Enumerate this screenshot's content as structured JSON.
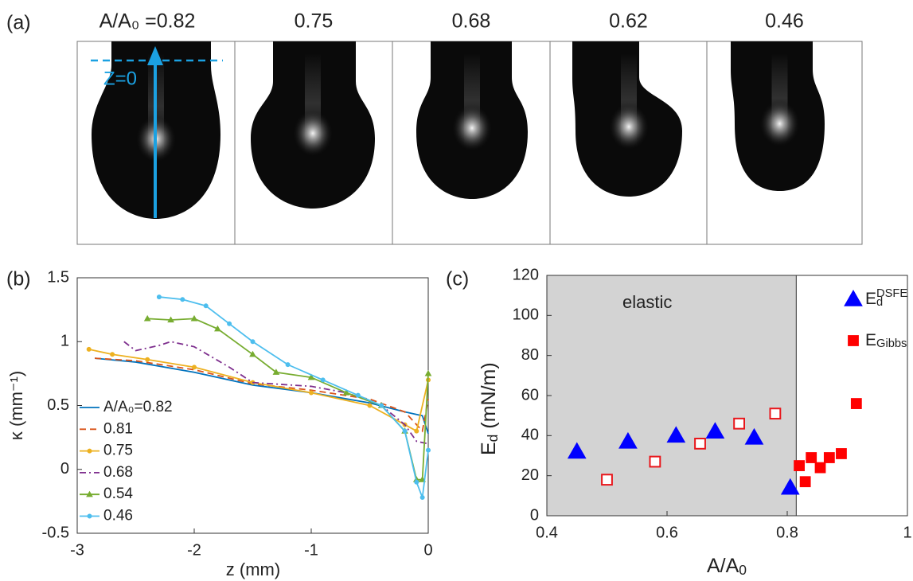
{
  "panel_a": {
    "label": "(a)",
    "z_label": "Z=0",
    "frames": [
      {
        "label": "A/A₀ =0.82"
      },
      {
        "label": "0.75"
      },
      {
        "label": "0.68"
      },
      {
        "label": "0.62"
      },
      {
        "label": "0.46"
      }
    ]
  },
  "chart_data": [
    {
      "type": "line",
      "panel_label": "(b)",
      "xlabel": "z (mm)",
      "ylabel": "κ (mm⁻¹)",
      "xlim": [
        -3,
        0
      ],
      "ylim": [
        -0.5,
        1.5
      ],
      "xticks": [
        -3,
        -2,
        -1,
        0
      ],
      "yticks": [
        -0.5,
        0,
        0.5,
        1,
        1.5
      ],
      "legend": "lower left",
      "series": [
        {
          "name": "A/A₀=0.82",
          "color": "#0072bd",
          "dash": "solid",
          "marker": "none",
          "x": [
            -2.85,
            -2.5,
            -2,
            -1.5,
            -1,
            -0.5,
            -0.2,
            -0.05,
            0
          ],
          "values": [
            0.87,
            0.84,
            0.76,
            0.66,
            0.6,
            0.52,
            0.45,
            0.42,
            0.28
          ]
        },
        {
          "name": "0.81",
          "color": "#d95319",
          "dash": "dashed",
          "marker": "none",
          "x": [
            -2.85,
            -2.5,
            -2,
            -1.5,
            -1,
            -0.5,
            -0.2,
            -0.05,
            0
          ],
          "values": [
            0.87,
            0.85,
            0.78,
            0.67,
            0.62,
            0.55,
            0.45,
            0.3,
            0.55
          ]
        },
        {
          "name": "0.75",
          "color": "#edb120",
          "dash": "solid",
          "marker": "dot",
          "x": [
            -2.9,
            -2.7,
            -2.4,
            -2,
            -1.5,
            -1,
            -0.5,
            -0.2,
            -0.1,
            0
          ],
          "values": [
            0.94,
            0.9,
            0.86,
            0.8,
            0.68,
            0.6,
            0.5,
            0.35,
            0.3,
            0.7
          ]
        },
        {
          "name": "0.68",
          "color": "#7e2f8e",
          "dash": "dashdot",
          "marker": "none",
          "x": [
            -2.6,
            -2.5,
            -2.3,
            -2.2,
            -2,
            -1.7,
            -1.5,
            -1,
            -0.7,
            -0.4,
            -0.2,
            -0.1,
            0
          ],
          "values": [
            1.0,
            0.93,
            0.97,
            1.0,
            0.96,
            0.8,
            0.68,
            0.65,
            0.6,
            0.5,
            0.35,
            0.22,
            0.2
          ]
        },
        {
          "name": "0.54",
          "color": "#77ac30",
          "dash": "solid",
          "marker": "triangle",
          "x": [
            -2.4,
            -2.2,
            -2,
            -1.8,
            -1.5,
            -1.3,
            -1,
            -0.7,
            -0.4,
            -0.2,
            -0.1,
            -0.05,
            0
          ],
          "values": [
            1.18,
            1.17,
            1.18,
            1.1,
            0.9,
            0.76,
            0.72,
            0.6,
            0.5,
            0.3,
            -0.08,
            -0.08,
            0.75
          ]
        },
        {
          "name": "0.46",
          "color": "#4dbeee",
          "dash": "solid",
          "marker": "dot",
          "x": [
            -2.3,
            -2.1,
            -1.9,
            -1.7,
            -1.5,
            -1.2,
            -0.9,
            -0.6,
            -0.4,
            -0.2,
            -0.1,
            -0.05,
            0
          ],
          "values": [
            1.35,
            1.33,
            1.28,
            1.14,
            1.0,
            0.82,
            0.7,
            0.58,
            0.5,
            0.3,
            -0.1,
            -0.22,
            0.15
          ]
        }
      ]
    },
    {
      "type": "scatter",
      "panel_label": "(c)",
      "xlabel": [
        {
          "text": "A/A"
        },
        {
          "text": "0",
          "sub": true
        }
      ],
      "ylabel": [
        {
          "text": "E"
        },
        {
          "text": "d",
          "sub": true
        },
        {
          "text": " (mN/m)"
        }
      ],
      "xlim": [
        0.4,
        1
      ],
      "ylim": [
        0,
        120
      ],
      "xticks": [
        0.4,
        0.6,
        0.8,
        1
      ],
      "yticks": [
        0,
        20,
        40,
        60,
        80,
        100,
        120
      ],
      "legend": "upper right",
      "shaded_region": {
        "xlim": [
          0.4,
          0.815
        ],
        "label": "elastic",
        "color": "#d3d3d3"
      },
      "series": [
        {
          "name": [
            {
              "text": "E"
            },
            {
              "text": "d",
              "sub": true
            },
            {
              "text": "DSFE",
              "sup": true
            }
          ],
          "color": "#0000ff",
          "marker": "triangle",
          "filled": true,
          "x": [
            0.45,
            0.535,
            0.615,
            0.68,
            0.745,
            0.805
          ],
          "values": [
            32,
            37,
            40,
            42,
            39,
            14
          ]
        },
        {
          "color": "#e8161b",
          "marker": "square",
          "filled": false,
          "x": [
            0.5,
            0.58,
            0.655,
            0.72,
            0.78
          ],
          "values": [
            18,
            27,
            36,
            46,
            51
          ]
        },
        {
          "name": [
            {
              "text": "E"
            },
            {
              "text": "Gibbs",
              "sub": true
            }
          ],
          "color": "#ff0000",
          "marker": "square",
          "filled": true,
          "x": [
            0.82,
            0.83,
            0.84,
            0.855,
            0.87,
            0.89,
            0.915
          ],
          "values": [
            25,
            17,
            29,
            24,
            29,
            31,
            56
          ]
        }
      ]
    }
  ]
}
